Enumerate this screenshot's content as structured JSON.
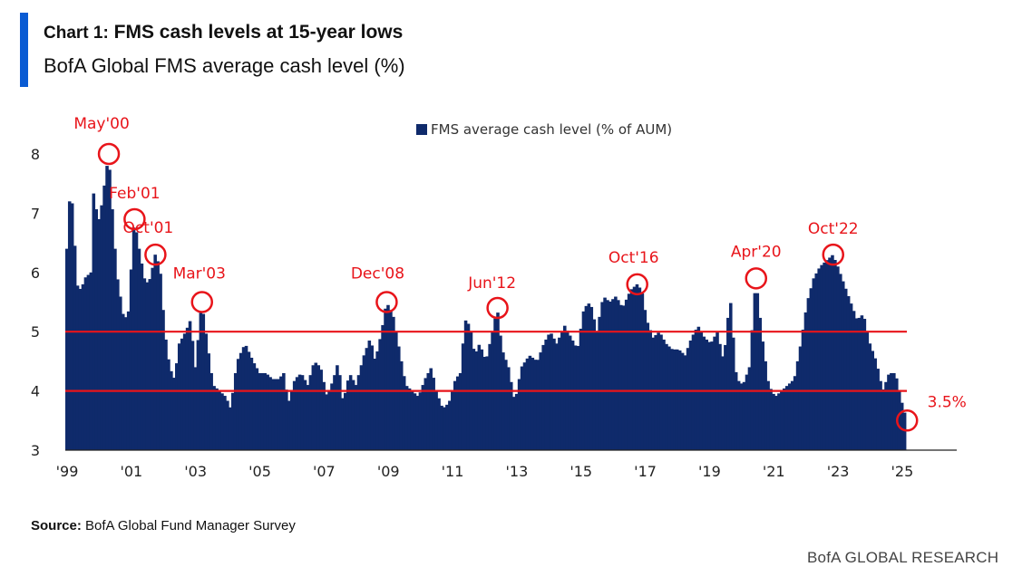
{
  "header": {
    "title_prefix": "Chart 1:",
    "title": "FMS cash levels at 15-year lows",
    "subtitle": "BofA Global FMS average cash level (%)"
  },
  "source": {
    "label": "Source:",
    "text": "BofA Global Fund Manager Survey"
  },
  "footer": {
    "brand": "BofA GLOBAL RESEARCH"
  },
  "colors": {
    "bars": "#0f2a6b",
    "annotation": "#e8141a",
    "accent": "#0a5bd3"
  },
  "chart_data": {
    "type": "bar",
    "legend": {
      "label": "FMS average cash level (% of AUM)",
      "placement": "top-center"
    },
    "ylim": [
      3,
      8
    ],
    "yticks": [
      "3",
      "4",
      "5",
      "6",
      "7",
      "8"
    ],
    "xlim": [
      1999.0,
      2027.0
    ],
    "xticks": [
      {
        "x": 1999,
        "label": "'99"
      },
      {
        "x": 2001,
        "label": "'01"
      },
      {
        "x": 2003,
        "label": "'03"
      },
      {
        "x": 2005,
        "label": "'05"
      },
      {
        "x": 2007,
        "label": "'07"
      },
      {
        "x": 2009,
        "label": "'09"
      },
      {
        "x": 2011,
        "label": "'11"
      },
      {
        "x": 2013,
        "label": "'13"
      },
      {
        "x": 2015,
        "label": "'15"
      },
      {
        "x": 2017,
        "label": "'17"
      },
      {
        "x": 2019,
        "label": "'19"
      },
      {
        "x": 2021,
        "label": "'21"
      },
      {
        "x": 2023,
        "label": "'23"
      },
      {
        "x": 2025,
        "label": "'25"
      }
    ],
    "reference_lines": [
      4.0,
      5.0
    ],
    "anchors": [
      [
        1999.0,
        6.4
      ],
      [
        1999.05,
        7.0
      ],
      [
        1999.1,
        7.3
      ],
      [
        1999.2,
        7.1
      ],
      [
        1999.3,
        5.8
      ],
      [
        1999.45,
        5.7
      ],
      [
        1999.55,
        5.9
      ],
      [
        1999.75,
        6.0
      ],
      [
        1999.85,
        7.6
      ],
      [
        1999.95,
        6.8
      ],
      [
        2000.05,
        7.0
      ],
      [
        2000.15,
        7.4
      ],
      [
        2000.3,
        8.0
      ],
      [
        2000.4,
        7.2
      ],
      [
        2000.55,
        6.0
      ],
      [
        2000.75,
        5.3
      ],
      [
        2000.9,
        5.2
      ],
      [
        2001.1,
        6.9
      ],
      [
        2001.25,
        6.4
      ],
      [
        2001.45,
        5.8
      ],
      [
        2001.6,
        5.9
      ],
      [
        2001.75,
        6.3
      ],
      [
        2001.9,
        6.1
      ],
      [
        2002.05,
        5.0
      ],
      [
        2002.2,
        4.4
      ],
      [
        2002.35,
        4.2
      ],
      [
        2002.5,
        4.8
      ],
      [
        2002.7,
        5.0
      ],
      [
        2002.85,
        5.2
      ],
      [
        2003.0,
        4.4
      ],
      [
        2003.2,
        5.5
      ],
      [
        2003.35,
        4.9
      ],
      [
        2003.55,
        4.1
      ],
      [
        2003.75,
        4.0
      ],
      [
        2003.95,
        3.9
      ],
      [
        2004.1,
        3.7
      ],
      [
        2004.3,
        4.5
      ],
      [
        2004.55,
        4.8
      ],
      [
        2004.8,
        4.5
      ],
      [
        2005.0,
        4.3
      ],
      [
        2005.2,
        4.3
      ],
      [
        2005.4,
        4.2
      ],
      [
        2005.6,
        4.2
      ],
      [
        2005.75,
        4.3
      ],
      [
        2005.9,
        3.8
      ],
      [
        2006.1,
        4.2
      ],
      [
        2006.3,
        4.3
      ],
      [
        2006.5,
        4.1
      ],
      [
        2006.7,
        4.5
      ],
      [
        2006.9,
        4.4
      ],
      [
        2007.1,
        3.9
      ],
      [
        2007.3,
        4.2
      ],
      [
        2007.45,
        4.5
      ],
      [
        2007.6,
        3.8
      ],
      [
        2007.8,
        4.3
      ],
      [
        2008.0,
        4.1
      ],
      [
        2008.25,
        4.6
      ],
      [
        2008.45,
        4.9
      ],
      [
        2008.6,
        4.5
      ],
      [
        2008.8,
        5.0
      ],
      [
        2008.95,
        5.5
      ],
      [
        2009.15,
        5.3
      ],
      [
        2009.35,
        4.7
      ],
      [
        2009.55,
        4.1
      ],
      [
        2009.75,
        4.0
      ],
      [
        2009.95,
        3.9
      ],
      [
        2010.15,
        4.2
      ],
      [
        2010.35,
        4.4
      ],
      [
        2010.5,
        4.0
      ],
      [
        2010.7,
        3.7
      ],
      [
        2010.9,
        3.8
      ],
      [
        2011.1,
        4.2
      ],
      [
        2011.25,
        4.3
      ],
      [
        2011.4,
        5.2
      ],
      [
        2011.55,
        5.1
      ],
      [
        2011.7,
        4.6
      ],
      [
        2011.85,
        4.8
      ],
      [
        2012.05,
        4.5
      ],
      [
        2012.25,
        5.0
      ],
      [
        2012.4,
        5.4
      ],
      [
        2012.55,
        4.7
      ],
      [
        2012.75,
        4.4
      ],
      [
        2012.95,
        3.8
      ],
      [
        2013.15,
        4.4
      ],
      [
        2013.4,
        4.6
      ],
      [
        2013.65,
        4.5
      ],
      [
        2013.85,
        4.8
      ],
      [
        2014.05,
        5.0
      ],
      [
        2014.25,
        4.8
      ],
      [
        2014.5,
        5.1
      ],
      [
        2014.7,
        4.9
      ],
      [
        2014.9,
        4.7
      ],
      [
        2015.1,
        5.4
      ],
      [
        2015.3,
        5.5
      ],
      [
        2015.5,
        5.0
      ],
      [
        2015.7,
        5.6
      ],
      [
        2015.9,
        5.5
      ],
      [
        2016.1,
        5.6
      ],
      [
        2016.3,
        5.4
      ],
      [
        2016.55,
        5.7
      ],
      [
        2016.75,
        5.8
      ],
      [
        2016.9,
        5.7
      ],
      [
        2017.05,
        5.2
      ],
      [
        2017.25,
        4.9
      ],
      [
        2017.45,
        5.0
      ],
      [
        2017.65,
        4.8
      ],
      [
        2017.85,
        4.7
      ],
      [
        2018.05,
        4.7
      ],
      [
        2018.25,
        4.6
      ],
      [
        2018.45,
        4.9
      ],
      [
        2018.65,
        5.1
      ],
      [
        2018.85,
        4.9
      ],
      [
        2019.05,
        4.8
      ],
      [
        2019.25,
        5.0
      ],
      [
        2019.45,
        4.5
      ],
      [
        2019.65,
        5.6
      ],
      [
        2019.85,
        4.2
      ],
      [
        2020.05,
        4.1
      ],
      [
        2020.25,
        4.4
      ],
      [
        2020.45,
        5.9
      ],
      [
        2020.65,
        4.9
      ],
      [
        2020.85,
        4.1
      ],
      [
        2021.05,
        3.9
      ],
      [
        2021.25,
        4.0
      ],
      [
        2021.45,
        4.1
      ],
      [
        2021.65,
        4.2
      ],
      [
        2021.85,
        4.8
      ],
      [
        2022.05,
        5.5
      ],
      [
        2022.25,
        5.9
      ],
      [
        2022.45,
        6.1
      ],
      [
        2022.65,
        6.2
      ],
      [
        2022.85,
        6.3
      ],
      [
        2023.0,
        6.1
      ],
      [
        2023.2,
        5.8
      ],
      [
        2023.4,
        5.5
      ],
      [
        2023.6,
        5.2
      ],
      [
        2023.8,
        5.3
      ],
      [
        2024.0,
        4.8
      ],
      [
        2024.2,
        4.5
      ],
      [
        2024.4,
        4.0
      ],
      [
        2024.6,
        4.3
      ],
      [
        2024.8,
        4.3
      ],
      [
        2024.95,
        3.9
      ],
      [
        2025.15,
        3.5
      ]
    ],
    "annotations": [
      {
        "label": "May'00",
        "x": 2000.3,
        "y": 8.0
      },
      {
        "label": "Feb'01",
        "x": 2001.1,
        "y": 6.9
      },
      {
        "label": "Oct'01",
        "x": 2001.75,
        "y": 6.3
      },
      {
        "label": "Mar'03",
        "x": 2003.2,
        "y": 5.5
      },
      {
        "label": "Dec'08",
        "x": 2008.95,
        "y": 5.5
      },
      {
        "label": "Jun'12",
        "x": 2012.4,
        "y": 5.4
      },
      {
        "label": "Oct'16",
        "x": 2016.75,
        "y": 5.8
      },
      {
        "label": "Apr'20",
        "x": 2020.45,
        "y": 5.9
      },
      {
        "label": "Oct'22",
        "x": 2022.85,
        "y": 6.3
      },
      {
        "label": "3.5%",
        "x": 2025.15,
        "y": 3.5
      }
    ]
  }
}
